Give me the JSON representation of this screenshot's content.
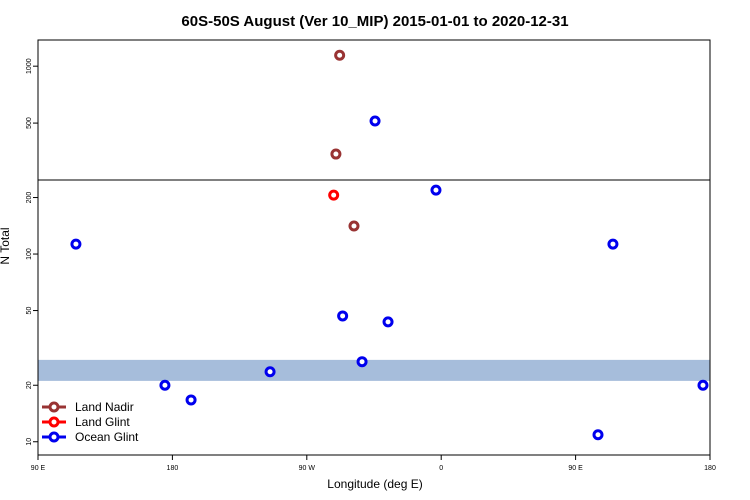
{
  "chart_data": {
    "type": "scatter",
    "title": "60S-50S August (Ver 10_MIP)   2015-01-01 to 2020-12-31",
    "xlabel": "Longitude (deg E)",
    "ylabel": "N Total",
    "xlim": [
      90,
      540
    ],
    "xticks": [
      {
        "value": 90,
        "label": "90 E"
      },
      180,
      {
        "value": 270,
        "label": "90 W"
      },
      {
        "value": 360,
        "label": "0"
      },
      {
        "value": 450,
        "label": "90 E"
      },
      {
        "value": 540,
        "label": "180"
      }
    ],
    "upper_ylim": [
      0,
      1230
    ],
    "upper_yticks": [
      500,
      1000
    ],
    "lower_ylim": [
      8.5,
      248
    ],
    "lower_yticks": [
      10,
      20,
      50,
      100,
      200
    ],
    "lower_log": true,
    "band": [
      21.1,
      27.3
    ],
    "band_color": "#a6bddb",
    "legend": "lower left",
    "series": [
      {
        "name": "Land Nadir",
        "color": "#993333",
        "x": [
          292,
          289.5,
          301.6
        ],
        "values": [
          1096,
          228,
          141
        ],
        "panel": [
          "upper",
          "upper",
          "lower"
        ]
      },
      {
        "name": "Land Glint",
        "color": "#ff0000",
        "x": [
          288
        ],
        "values": [
          206
        ],
        "panel": [
          "lower"
        ]
      },
      {
        "name": "Ocean Glint",
        "color": "#0000ee",
        "x": [
          315.7,
          356.5,
          115.4,
          475,
          294,
          324.4,
          307,
          245.4,
          175,
          535.3,
          192.5,
          465
        ],
        "values": [
          518,
          219,
          113,
          113,
          46.8,
          43.5,
          26.7,
          23.6,
          20,
          20,
          16.7,
          10.9
        ],
        "panel": [
          "upper",
          "lower",
          "lower",
          "lower",
          "lower",
          "lower",
          "lower",
          "lower",
          "lower",
          "lower",
          "lower",
          "lower"
        ]
      }
    ]
  }
}
